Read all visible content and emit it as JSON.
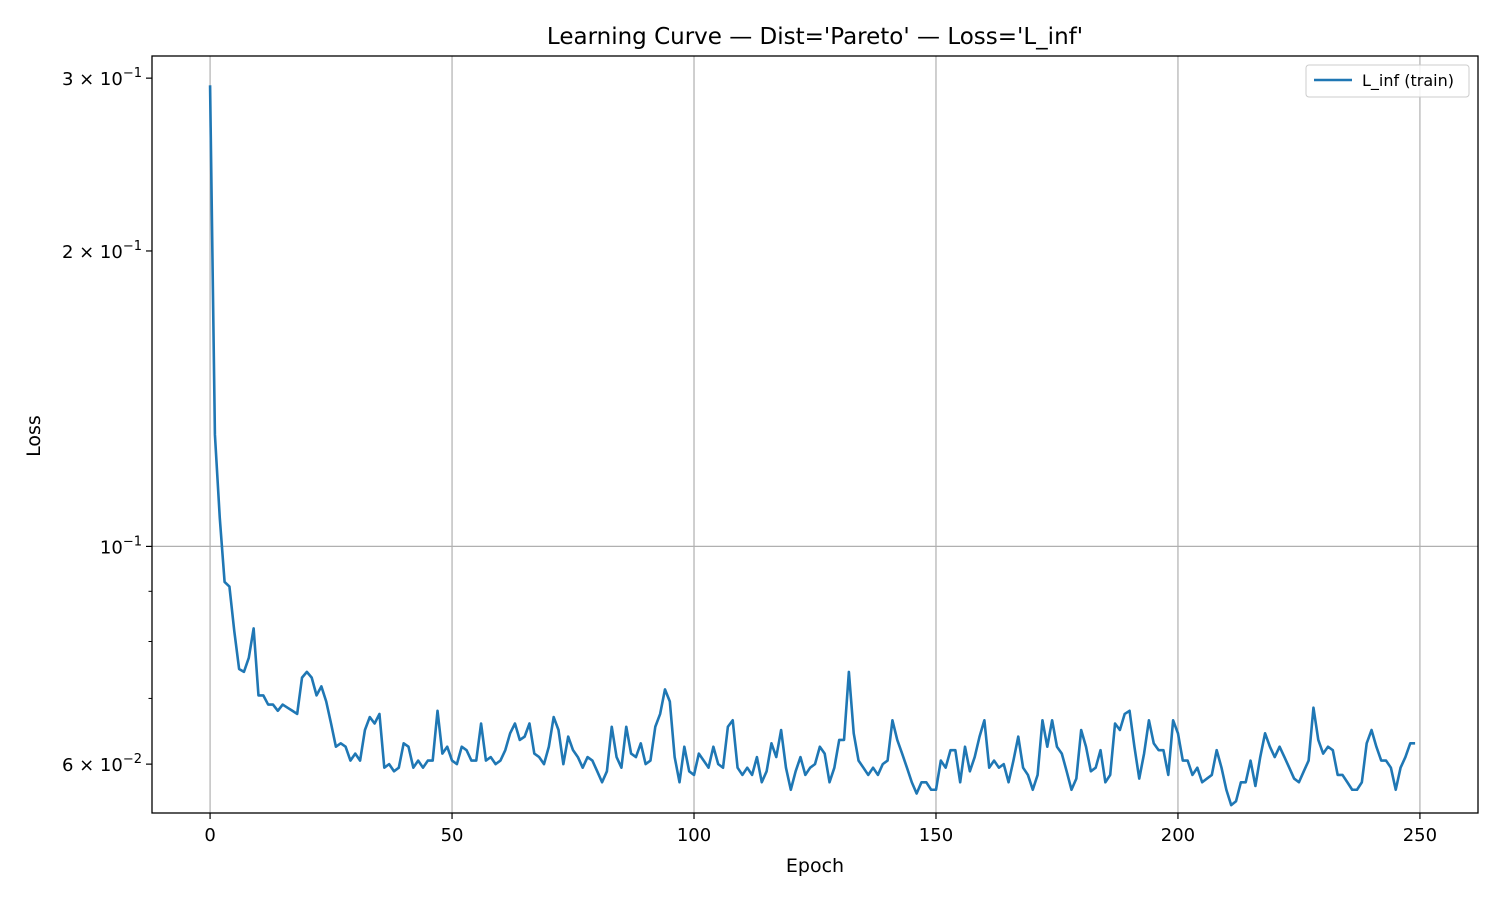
{
  "chart_data": {
    "type": "line",
    "title": "Learning Curve — Dist='Pareto' — Loss='L_inf'",
    "xlabel": "Epoch",
    "ylabel": "Loss",
    "xlim": [
      -12,
      262
    ],
    "ylim": [
      0.0535,
      0.316
    ],
    "yscale": "log",
    "grid": true,
    "legend_position": "top-right",
    "x_ticks": [
      0,
      50,
      100,
      150,
      200,
      250
    ],
    "y_ticks": [
      {
        "value": 0.1,
        "label": "10^-1",
        "base": "10",
        "exp": "−1",
        "prefix": ""
      },
      {
        "value": 0.2,
        "label": "2×10^-1",
        "base": "10",
        "exp": "−1",
        "prefix": "2 × "
      },
      {
        "value": 0.3,
        "label": "3×10^-1",
        "base": "10",
        "exp": "−1",
        "prefix": "3 × "
      },
      {
        "value": 0.06,
        "label": "6×10^-2",
        "base": "10",
        "exp": "−2",
        "prefix": "6 × "
      }
    ],
    "y_minor_ticks": [
      0.07,
      0.08,
      0.09
    ],
    "series": [
      {
        "name": "L_inf (train)",
        "color": "#1f77b4",
        "x_start": 0,
        "values": [
          0.295,
          0.13,
          0.107,
          0.092,
          0.091,
          0.082,
          0.075,
          0.0745,
          0.077,
          0.0825,
          0.0705,
          0.0705,
          0.069,
          0.069,
          0.068,
          0.069,
          0.0685,
          0.068,
          0.0675,
          0.0735,
          0.0745,
          0.0735,
          0.0705,
          0.072,
          0.0695,
          0.066,
          0.0625,
          0.063,
          0.0625,
          0.0605,
          0.0615,
          0.0605,
          0.065,
          0.067,
          0.066,
          0.0675,
          0.0595,
          0.06,
          0.059,
          0.0595,
          0.063,
          0.0625,
          0.0595,
          0.0605,
          0.0595,
          0.0605,
          0.0605,
          0.068,
          0.0615,
          0.0625,
          0.0605,
          0.06,
          0.0625,
          0.062,
          0.0605,
          0.0605,
          0.066,
          0.0605,
          0.061,
          0.06,
          0.0605,
          0.062,
          0.0645,
          0.066,
          0.0635,
          0.064,
          0.066,
          0.0615,
          0.061,
          0.06,
          0.0625,
          0.067,
          0.065,
          0.06,
          0.064,
          0.062,
          0.061,
          0.0595,
          0.061,
          0.0605,
          0.059,
          0.0575,
          0.059,
          0.0655,
          0.061,
          0.0595,
          0.0655,
          0.0615,
          0.061,
          0.063,
          0.06,
          0.0605,
          0.0655,
          0.0675,
          0.0715,
          0.0695,
          0.061,
          0.0575,
          0.0625,
          0.059,
          0.0585,
          0.0615,
          0.0605,
          0.0595,
          0.0625,
          0.06,
          0.0595,
          0.0655,
          0.0665,
          0.0595,
          0.0585,
          0.0595,
          0.0585,
          0.061,
          0.0575,
          0.059,
          0.063,
          0.061,
          0.065,
          0.0595,
          0.0565,
          0.059,
          0.061,
          0.0585,
          0.0595,
          0.06,
          0.0625,
          0.0615,
          0.0575,
          0.0595,
          0.0635,
          0.0635,
          0.0745,
          0.0645,
          0.0605,
          0.0595,
          0.0585,
          0.0595,
          0.0585,
          0.06,
          0.0605,
          0.0665,
          0.0635,
          0.0615,
          0.0595,
          0.0575,
          0.056,
          0.0575,
          0.0575,
          0.0565,
          0.0565,
          0.0605,
          0.0595,
          0.062,
          0.062,
          0.0575,
          0.0625,
          0.059,
          0.061,
          0.064,
          0.0665,
          0.0595,
          0.0605,
          0.0595,
          0.06,
          0.0575,
          0.0605,
          0.064,
          0.0595,
          0.0585,
          0.0565,
          0.0585,
          0.0665,
          0.0625,
          0.0665,
          0.0625,
          0.0615,
          0.059,
          0.0565,
          0.058,
          0.065,
          0.0625,
          0.059,
          0.0595,
          0.062,
          0.0575,
          0.0585,
          0.066,
          0.065,
          0.0675,
          0.068,
          0.0625,
          0.058,
          0.0615,
          0.0665,
          0.063,
          0.062,
          0.062,
          0.0585,
          0.0665,
          0.0645,
          0.0605,
          0.0605,
          0.0585,
          0.0595,
          0.0575,
          0.058,
          0.0585,
          0.062,
          0.0595,
          0.0565,
          0.0545,
          0.055,
          0.0575,
          0.0575,
          0.0605,
          0.057,
          0.061,
          0.0645,
          0.0625,
          0.061,
          0.0625,
          0.061,
          0.0595,
          0.058,
          0.0575,
          0.059,
          0.0605,
          0.0685,
          0.0635,
          0.0615,
          0.0625,
          0.062,
          0.0585,
          0.0585,
          0.0575,
          0.0565,
          0.0565,
          0.0575,
          0.063,
          0.065,
          0.0625,
          0.0605,
          0.0605,
          0.0595,
          0.0565,
          0.0595,
          0.061,
          0.063,
          0.063
        ]
      }
    ]
  }
}
